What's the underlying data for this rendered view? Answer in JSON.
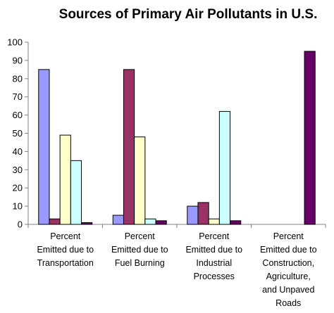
{
  "chart_data": {
    "type": "bar",
    "title": "Sources of Primary Air Pollutants in U.S.",
    "xlabel": "",
    "ylabel": "",
    "ylim": [
      0,
      100
    ],
    "yticks": [
      0,
      10,
      20,
      30,
      40,
      50,
      60,
      70,
      80,
      90,
      100
    ],
    "grid": false,
    "legend": "none",
    "categories": [
      [
        "Percent",
        "Emitted due to",
        "Transportation"
      ],
      [
        "Percent",
        "Emitted due to",
        "Fuel Burning"
      ],
      [
        "Percent",
        "Emitted due to",
        "Industrial",
        "Processes"
      ],
      [
        "Percent",
        "Emitted due to",
        "Construction,",
        "Agriculture,",
        "and Unpaved",
        "Roads"
      ]
    ],
    "series": [
      {
        "color": "#9999ff",
        "values": [
          85,
          5,
          10,
          0
        ]
      },
      {
        "color": "#993366",
        "values": [
          3,
          85,
          12,
          0
        ]
      },
      {
        "color": "#ffffcc",
        "values": [
          49,
          48,
          3,
          0
        ]
      },
      {
        "color": "#ccffff",
        "values": [
          35,
          3,
          62,
          0
        ]
      },
      {
        "color": "#660066",
        "values": [
          1,
          2,
          2,
          95
        ]
      }
    ]
  }
}
